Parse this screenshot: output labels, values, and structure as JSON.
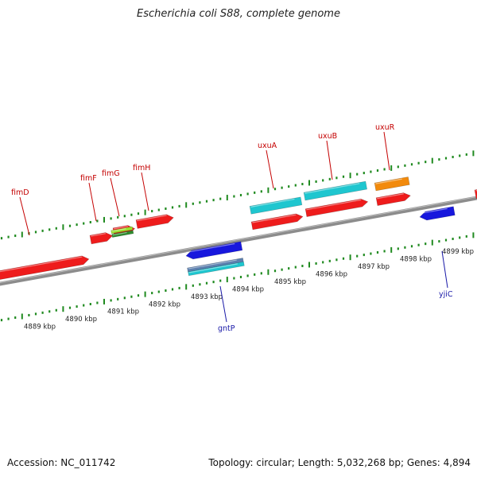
{
  "title": "Escherichia coli S88, complete genome",
  "footer": {
    "accession": "Accession: NC_011742",
    "summary": "Topology: circular; Length: 5,032,268 bp; Genes: 4,894"
  },
  "axis": {
    "unit": "kbp",
    "ticks": [
      4889,
      4890,
      4891,
      4892,
      4893,
      4894,
      4895,
      4896,
      4897,
      4898,
      4899
    ]
  },
  "colors": {
    "backbone": "#8c8c8c",
    "tick": "#1f8a1f",
    "gene_red": "#ee1c1c",
    "gene_cyan": "#1fc6cf",
    "gene_blue": "#1717dd",
    "gene_steel": "#5b7fae",
    "gene_orange": "#f28a0c",
    "gene_lime": "#9be12c",
    "gene_green": "#2e8b2e",
    "label_top": "#c40000",
    "label_bottom": "#1a1aa8"
  },
  "gene_labels": [
    {
      "name": "fimD",
      "side": "top"
    },
    {
      "name": "fimF",
      "side": "top"
    },
    {
      "name": "fimG",
      "side": "top"
    },
    {
      "name": "fimH",
      "side": "top"
    },
    {
      "name": "uxuA",
      "side": "top"
    },
    {
      "name": "uxuB",
      "side": "top"
    },
    {
      "name": "uxuR",
      "side": "top"
    },
    {
      "name": "gntP",
      "side": "bottom"
    },
    {
      "name": "yjiC",
      "side": "bottom"
    }
  ]
}
